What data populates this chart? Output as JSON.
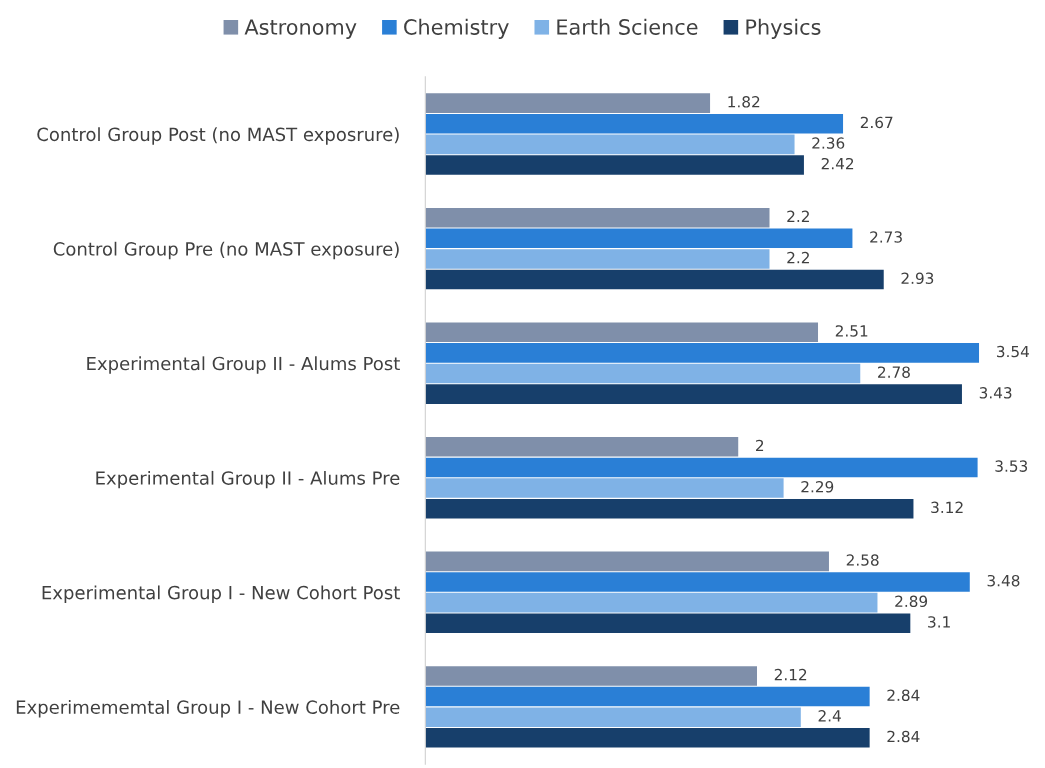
{
  "chart_data": {
    "type": "bar",
    "orientation": "horizontal",
    "categories": [
      "Control Group Post (no MAST exposrure)",
      "Control Group Pre (no MAST exposure)",
      "Experimental Group II - Alums Post",
      "Experimental Group II - Alums Pre",
      "Experimental Group I - New Cohort Post",
      "Experimememtal Group I - New Cohort Pre"
    ],
    "series": [
      {
        "name": "Astronomy",
        "color": "#7f8faa",
        "values": [
          1.82,
          2.2,
          2.51,
          2,
          2.58,
          2.12
        ]
      },
      {
        "name": "Chemistry",
        "color": "#2a7fd6",
        "values": [
          2.67,
          2.73,
          3.54,
          3.53,
          3.48,
          2.84
        ]
      },
      {
        "name": "Earth Science",
        "color": "#7fb2e6",
        "values": [
          2.36,
          2.2,
          2.78,
          2.29,
          2.89,
          2.4
        ]
      },
      {
        "name": "Physics",
        "color": "#173f6b",
        "values": [
          2.42,
          2.93,
          3.43,
          3.12,
          3.1,
          2.84
        ]
      }
    ],
    "tick_labels": "y",
    "data_labels": true,
    "legend": "top",
    "grid": false
  }
}
